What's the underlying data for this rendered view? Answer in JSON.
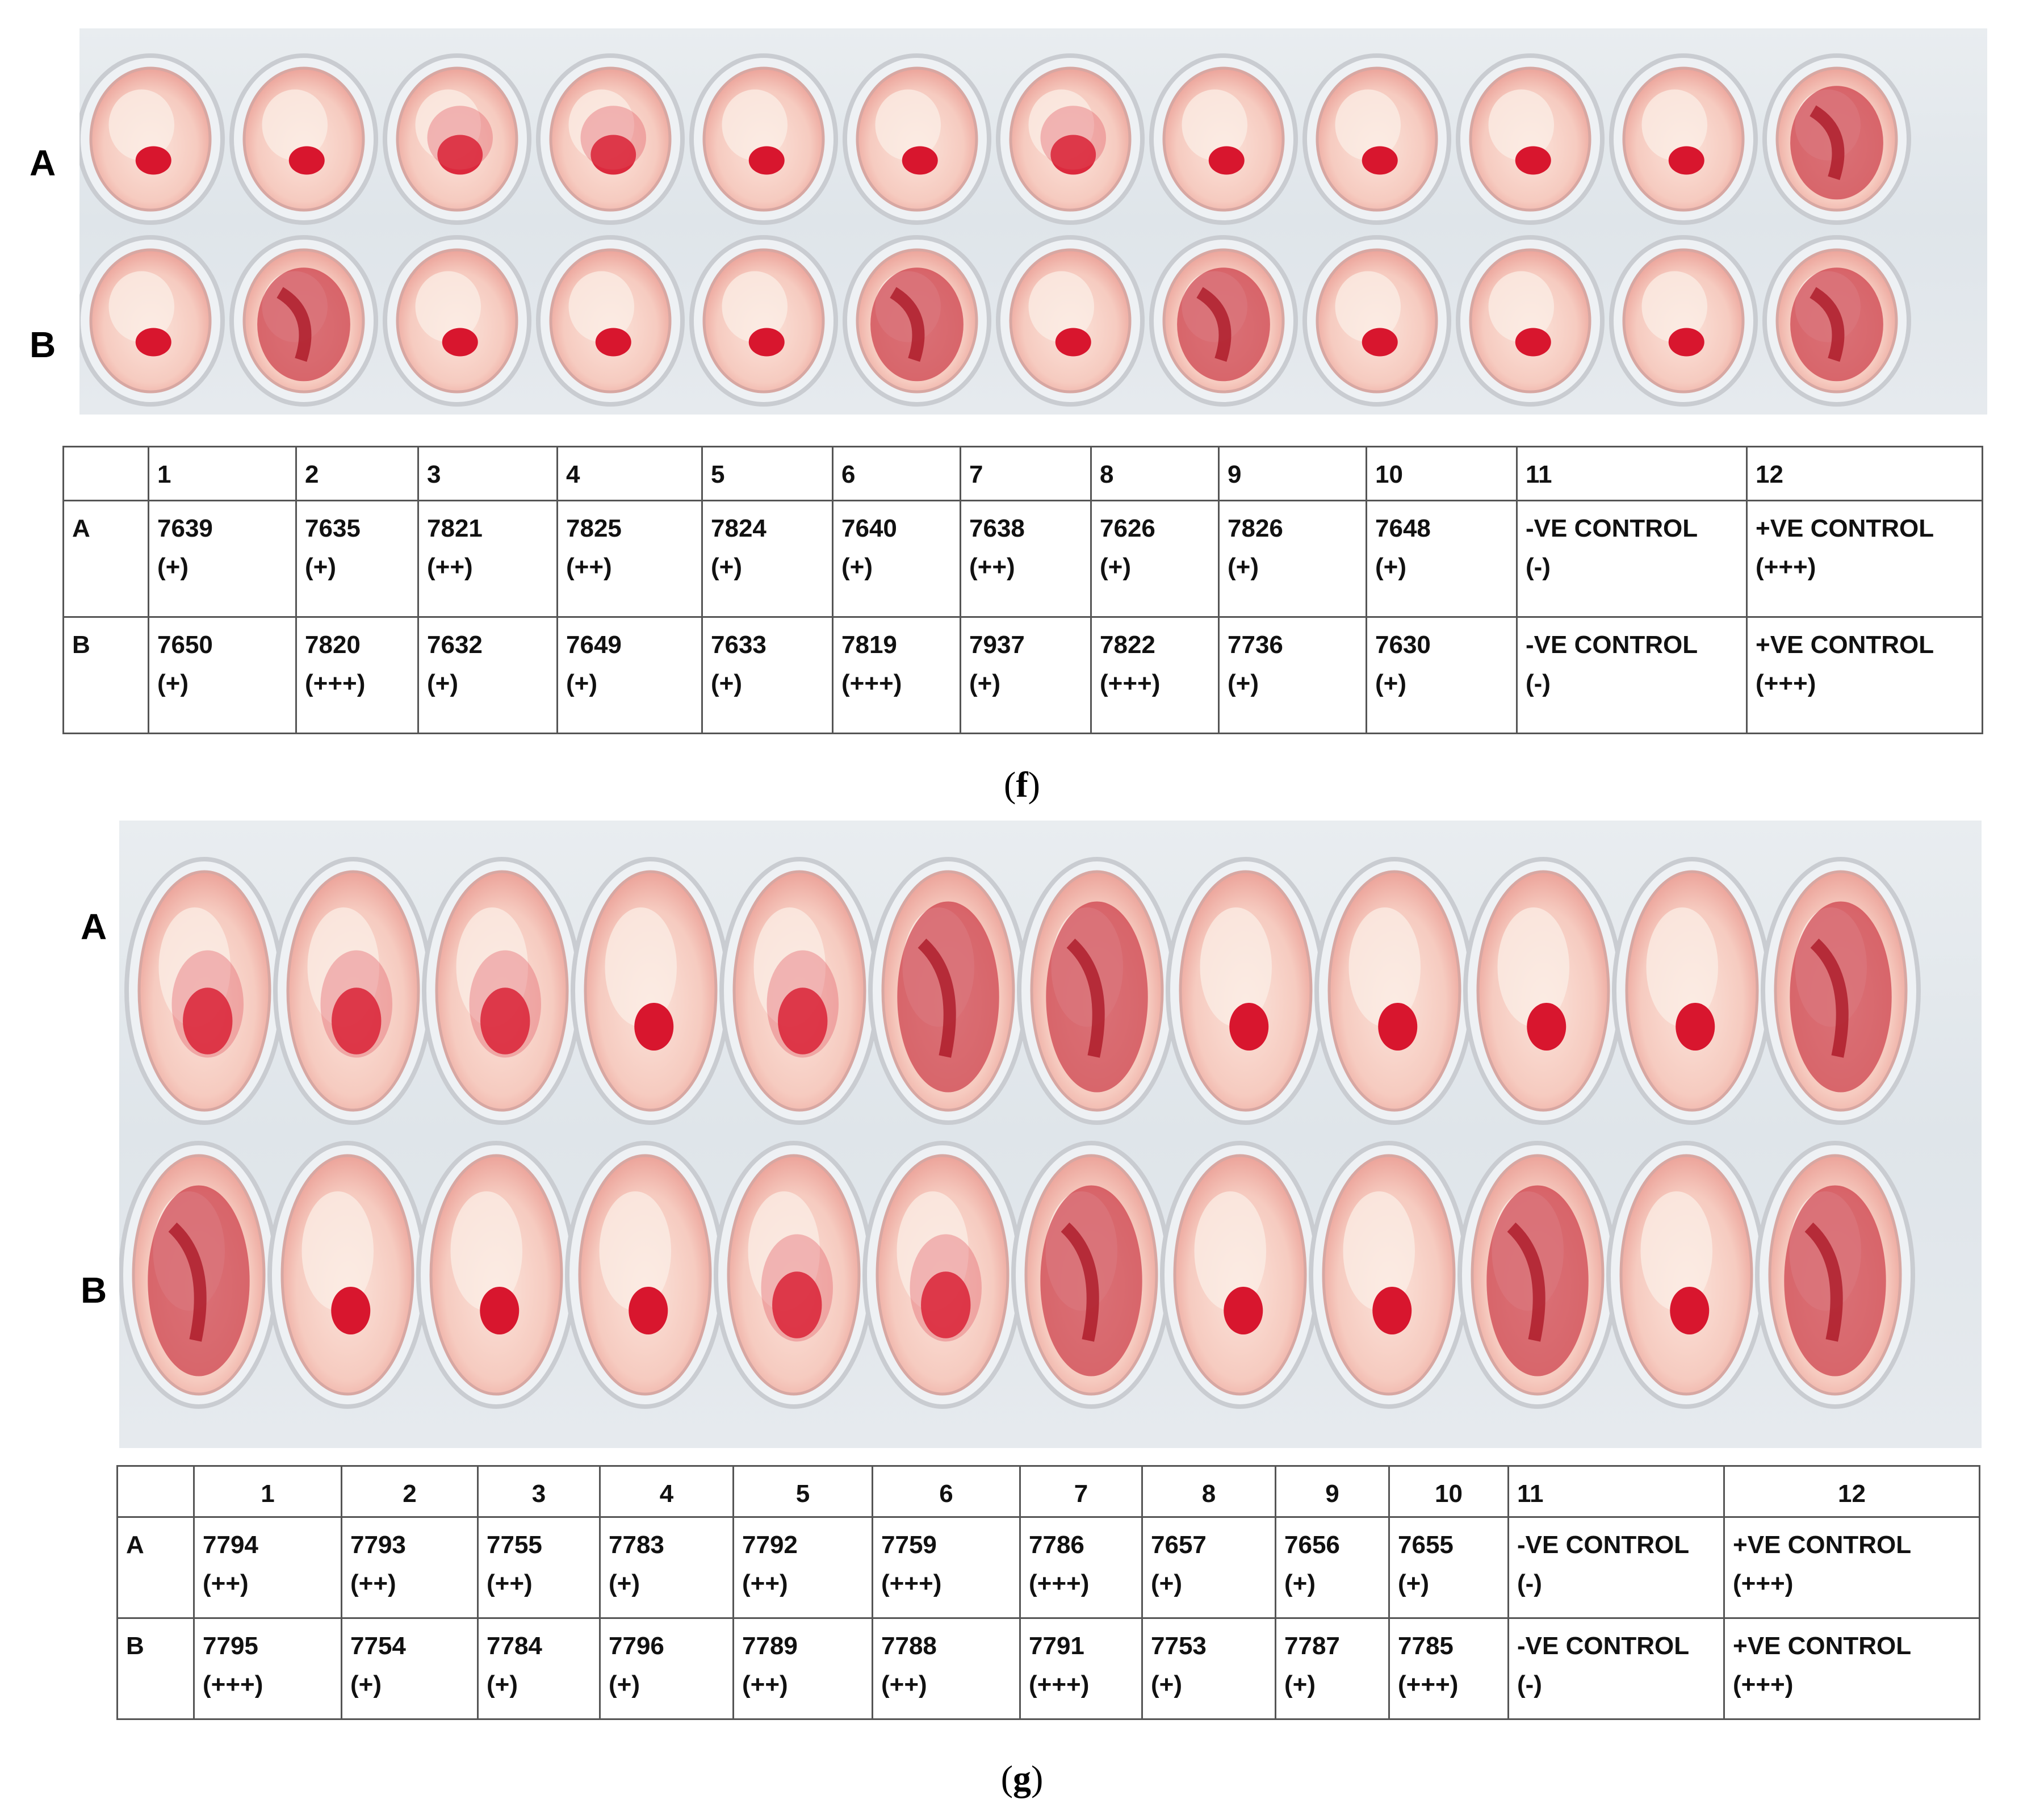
{
  "panels": [
    {
      "id": "f",
      "caption_letter": "f",
      "row_labels": [
        "A",
        "B"
      ],
      "column_headers": [
        "",
        "1",
        "2",
        "3",
        "4",
        "5",
        "6",
        "7",
        "8",
        "9",
        "10",
        "11",
        "12"
      ],
      "rows": [
        {
          "label": "A",
          "cells": [
            {
              "id": "7639",
              "score": "(+)"
            },
            {
              "id": "7635",
              "score": "(+)"
            },
            {
              "id": "7821",
              "score": "(++)"
            },
            {
              "id": "7825",
              "score": "(++)"
            },
            {
              "id": "7824",
              "score": "(+)"
            },
            {
              "id": "7640",
              "score": "(+)"
            },
            {
              "id": "7638",
              "score": "(++)"
            },
            {
              "id": "7626",
              "score": "(+)"
            },
            {
              "id": "7826",
              "score": "(+)"
            },
            {
              "id": "7648",
              "score": "(+)"
            },
            {
              "id": "-VE CONTROL",
              "score": "(-)"
            },
            {
              "id": "+VE CONTROL",
              "score": "(+++)"
            }
          ]
        },
        {
          "label": "B",
          "cells": [
            {
              "id": "7650",
              "score": "(+)"
            },
            {
              "id": "7820",
              "score": "(+++)"
            },
            {
              "id": "7632",
              "score": "(+)"
            },
            {
              "id": "7649",
              "score": "(+)"
            },
            {
              "id": "7633",
              "score": "(+)"
            },
            {
              "id": "7819",
              "score": "(+++)"
            },
            {
              "id": "7937",
              "score": "(+)"
            },
            {
              "id": "7822",
              "score": "(+++)"
            },
            {
              "id": "7736",
              "score": "(+)"
            },
            {
              "id": "7630",
              "score": "(+)"
            },
            {
              "id": "-VE CONTROL",
              "score": "(-)"
            },
            {
              "id": "+VE CONTROL",
              "score": "(+++)"
            }
          ]
        }
      ]
    },
    {
      "id": "g",
      "caption_letter": "g",
      "row_labels": [
        "A",
        "B"
      ],
      "column_headers": [
        "",
        "1",
        "2",
        "3",
        "4",
        "5",
        "6",
        "7",
        "8",
        "9",
        "10",
        "11",
        "12"
      ],
      "rows": [
        {
          "label": "A",
          "cells": [
            {
              "id": "7794",
              "score": "(++)"
            },
            {
              "id": "7793",
              "score": "(++)"
            },
            {
              "id": "7755",
              "score": "(++)"
            },
            {
              "id": "7783",
              "score": "(+)"
            },
            {
              "id": "7792",
              "score": "(++)"
            },
            {
              "id": "7759",
              "score": "(+++)"
            },
            {
              "id": "7786",
              "score": "(+++)"
            },
            {
              "id": "7657",
              "score": "(+)"
            },
            {
              "id": "7656",
              "score": "(+)"
            },
            {
              "id": "7655",
              "score": "(+)"
            },
            {
              "id": "-VE CONTROL",
              "score": "(-)"
            },
            {
              "id": "+VE CONTROL",
              "score": "(+++)"
            }
          ]
        },
        {
          "label": "B",
          "cells": [
            {
              "id": "7795",
              "score": "(+++)"
            },
            {
              "id": "7754",
              "score": "(+)"
            },
            {
              "id": "7784",
              "score": "(+)"
            },
            {
              "id": "7796",
              "score": "(+)"
            },
            {
              "id": "7789",
              "score": "(++)"
            },
            {
              "id": "7788",
              "score": "(++)"
            },
            {
              "id": "7791",
              "score": "(+++)"
            },
            {
              "id": "7753",
              "score": "(+)"
            },
            {
              "id": "7787",
              "score": "(+)"
            },
            {
              "id": "7785",
              "score": "(+++)"
            },
            {
              "id": "-VE CONTROL",
              "score": "(-)"
            },
            {
              "id": "+VE CONTROL",
              "score": "(+++)"
            }
          ]
        }
      ]
    }
  ],
  "colors": {
    "blood": "#d8162e",
    "well_fluid": "#f6cbc0",
    "well_rim": "#c9ccd1",
    "plate_background": "#e3e8ec"
  }
}
